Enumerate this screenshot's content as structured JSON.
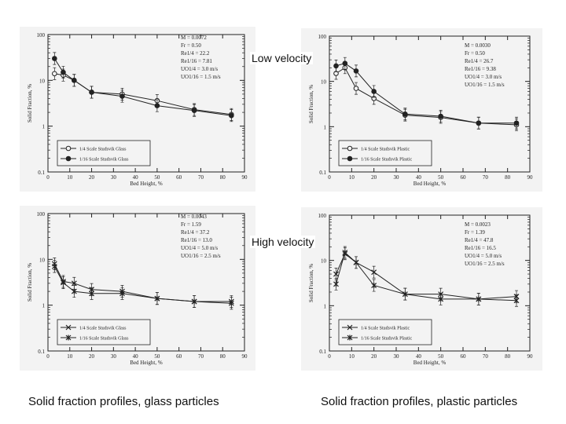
{
  "labels": {
    "low_velocity": "Low velocity",
    "high_velocity": "High velocity",
    "caption_glass": "Solid fraction profiles, glass particles",
    "caption_plastic": "Solid fraction profiles, plastic particles"
  },
  "colors": {
    "background": "#ffffff",
    "panel": "#f3f3f3",
    "ink": "#222222"
  },
  "chart_data": [
    {
      "id": "glass-low",
      "type": "line",
      "xlabel": "Bed Height, %",
      "ylabel": "Solid Fraction, %",
      "yscale": "log",
      "xlim": [
        0,
        90
      ],
      "ylim": [
        0.1,
        100
      ],
      "x_ticks": [
        "0",
        "10",
        "20",
        "30",
        "40",
        "50",
        "60",
        "70",
        "80",
        "90"
      ],
      "y_ticks": [
        "0.1",
        "1",
        "10",
        "100"
      ],
      "legend_position": "bottom-left",
      "params": [
        "M = 0.0072",
        "Fr = 0.50",
        "Re1/4 = 22.2",
        "Re1/16 = 7.81",
        "UO1/4 = 3.0 m/s",
        "UO1/16 = 1.5 m/s"
      ],
      "series": [
        {
          "name": "1/4 Scale Studsvik Glass",
          "marker": "open-circle",
          "x": [
            3,
            7,
            12,
            20,
            34,
            50,
            67,
            84
          ],
          "y": [
            14,
            13,
            10,
            5.5,
            5,
            3.6,
            2.3,
            1.8
          ]
        },
        {
          "name": "1/16 Scale Studsvik Glass",
          "marker": "filled-circle",
          "x": [
            3,
            7,
            12,
            20,
            34,
            50,
            67,
            84
          ],
          "y": [
            30,
            15,
            10,
            5.5,
            4.5,
            2.8,
            2.2,
            1.7
          ]
        }
      ]
    },
    {
      "id": "plastic-low",
      "type": "line",
      "xlabel": "Bed Height, %",
      "ylabel": "Solid Fraction, %",
      "yscale": "log",
      "xlim": [
        0,
        90
      ],
      "ylim": [
        0.1,
        100
      ],
      "x_ticks": [
        "0",
        "10",
        "20",
        "30",
        "40",
        "50",
        "60",
        "70",
        "80",
        "90"
      ],
      "y_ticks": [
        "0.1",
        "1",
        "10",
        "100"
      ],
      "legend_position": "bottom-left",
      "params": [
        "M = 0.0030",
        "Fr = 0.50",
        "Re1/4 = 26.7",
        "Re1/16 = 9.38",
        "UO1/4 = 3.0 m/s",
        "UO1/16 = 1.5 m/s"
      ],
      "series": [
        {
          "name": "1/4 Scale Studsvik Plastic",
          "marker": "open-circle",
          "x": [
            3,
            7,
            12,
            20,
            34,
            50,
            67,
            84
          ],
          "y": [
            15,
            20,
            7,
            4.2,
            1.8,
            1.6,
            1.2,
            1.1
          ]
        },
        {
          "name": "1/16 Scale Studsvik Plastic",
          "marker": "filled-circle",
          "x": [
            3,
            7,
            12,
            20,
            34,
            50,
            67,
            84
          ],
          "y": [
            22,
            25,
            17,
            6,
            1.9,
            1.7,
            1.2,
            1.2
          ]
        }
      ]
    },
    {
      "id": "glass-high",
      "type": "line",
      "xlabel": "Bed Height, %",
      "ylabel": "Solid Fraction, %",
      "yscale": "log",
      "xlim": [
        0,
        90
      ],
      "ylim": [
        0.1,
        100
      ],
      "x_ticks": [
        "0",
        "10",
        "20",
        "30",
        "40",
        "50",
        "60",
        "70",
        "80",
        "90"
      ],
      "y_ticks": [
        "0.1",
        "1",
        "10",
        "100"
      ],
      "legend_position": "bottom-left",
      "params": [
        "M = 0.0043",
        "Fr = 1.59",
        "Re1/4 = 37.2",
        "Re1/16 = 13.0",
        "UO1/4 = 5.0 m/s",
        "UO1/16 = 2.5 m/s"
      ],
      "series": [
        {
          "name": "1/4 Scale Studsvik Glass",
          "marker": "x",
          "x": [
            3,
            7,
            12,
            20,
            34,
            50,
            67,
            84
          ],
          "y": [
            8,
            3.3,
            3,
            2.2,
            2,
            1.4,
            1.2,
            1.2
          ]
        },
        {
          "name": "1/16 Scale Studsvik Glass",
          "marker": "asterisk",
          "x": [
            3,
            7,
            12,
            20,
            34,
            50,
            67,
            84
          ],
          "y": [
            7,
            3.1,
            2,
            1.8,
            1.8,
            1.4,
            1.2,
            1.1
          ]
        }
      ]
    },
    {
      "id": "plastic-high",
      "type": "line",
      "xlabel": "Bed Height, %",
      "ylabel": "Solid Fraction, %",
      "yscale": "log",
      "xlim": [
        0,
        90
      ],
      "ylim": [
        0.1,
        100
      ],
      "x_ticks": [
        "0",
        "10",
        "20",
        "30",
        "40",
        "50",
        "60",
        "70",
        "80",
        "90"
      ],
      "y_ticks": [
        "0.1",
        "1",
        "10",
        "100"
      ],
      "legend_position": "bottom-left",
      "params": [
        "M = 0.0023",
        "Fr = 1.39",
        "Re1/4 = 47.8",
        "Re1/16 = 16.5",
        "UO1/4 = 5.0 m/s",
        "UO1/16 = 2.5 m/s"
      ],
      "series": [
        {
          "name": "1/4 Scale Studsvik Plastic",
          "marker": "x",
          "x": [
            3,
            7,
            12,
            20,
            34,
            50,
            67,
            84
          ],
          "y": [
            5,
            14,
            9,
            5.5,
            1.8,
            1.8,
            1.4,
            1.6
          ]
        },
        {
          "name": "1/16 Scale Studsvik Plastic",
          "marker": "asterisk",
          "x": [
            3,
            7,
            12,
            20,
            34,
            50,
            67,
            84
          ],
          "y": [
            3,
            15,
            9,
            2.8,
            1.8,
            1.4,
            1.4,
            1.3
          ]
        }
      ]
    }
  ]
}
